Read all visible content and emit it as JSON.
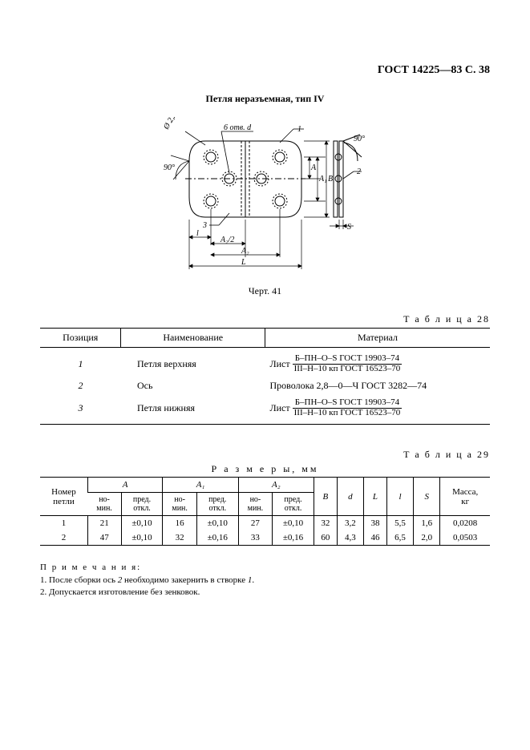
{
  "header": "ГОСТ 14225—83 С. 38",
  "title": "Петля неразъемная, тип IV",
  "diagram": {
    "label_6otb": "6 отв. d",
    "label_phi": "Ø 2,2",
    "angle90_left": "90°",
    "angle90_right": "90°",
    "callout_1": "1",
    "callout_2": "2",
    "callout_3": "3",
    "dim_A": "A",
    "dim_A1": "A₁",
    "dim_A2": "A₂",
    "dim_A2_2": "A₂/2",
    "dim_B": "B",
    "dim_L": "L",
    "dim_l": "l",
    "dim_S": "S",
    "stroke": "#000000",
    "hatch_spacing": 5
  },
  "caption": "Черт. 41",
  "table28": {
    "label": "Т а б л и ц а  28",
    "headers": [
      "Позиция",
      "Наименование",
      "Материал"
    ],
    "rows": [
      {
        "pos": "1",
        "name": "Петля верхняя",
        "mat_prefix": "Лист",
        "mat_top": "Б–ПН–О–S ГОСТ 19903–74",
        "mat_bot": "III–Н–10 кп ГОСТ 16523–70",
        "mat_plain": null
      },
      {
        "pos": "2",
        "name": "Ось",
        "mat_prefix": null,
        "mat_top": null,
        "mat_bot": null,
        "mat_plain": "Проволока 2,8—0—Ч ГОСТ 3282—74"
      },
      {
        "pos": "3",
        "name": "Петля нижняя",
        "mat_prefix": "Лист",
        "mat_top": "Б–ПН–О–S ГОСТ 19903–74",
        "mat_bot": "III–Н–10 кп ГОСТ 16523–70",
        "mat_plain": null
      }
    ]
  },
  "table29": {
    "label": "Т а б л и ц а  29",
    "dim_title": "Р а з м е р ы,  мм",
    "head": {
      "num": "Номер\nпетли",
      "A": "A",
      "A1": "A₁",
      "A2": "A₂",
      "nom": "но-\nмин.",
      "tol": "пред.\nоткл.",
      "B": "B",
      "d": "d",
      "L": "L",
      "l": "l",
      "S": "S",
      "mass": "Масса,\nкг"
    },
    "rows": [
      {
        "num": "1",
        "A_n": "21",
        "A_t": "±0,10",
        "A1_n": "16",
        "A1_t": "±0,10",
        "A2_n": "27",
        "A2_t": "±0,10",
        "B": "32",
        "d": "3,2",
        "L": "38",
        "l": "5,5",
        "S": "1,6",
        "m": "0,0208"
      },
      {
        "num": "2",
        "A_n": "47",
        "A_t": "±0,10",
        "A1_n": "32",
        "A1_t": "±0,16",
        "A2_n": "33",
        "A2_t": "±0,16",
        "B": "60",
        "d": "4,3",
        "L": "46",
        "l": "6,5",
        "S": "2,0",
        "m": "0,0503"
      }
    ]
  },
  "notes": {
    "title": "П р и м е ч а н и я:",
    "n1": "1. После сборки ось 2 необходимо закернить в створке 1.",
    "n2": "2. Допускается изготовление без зенковок."
  }
}
